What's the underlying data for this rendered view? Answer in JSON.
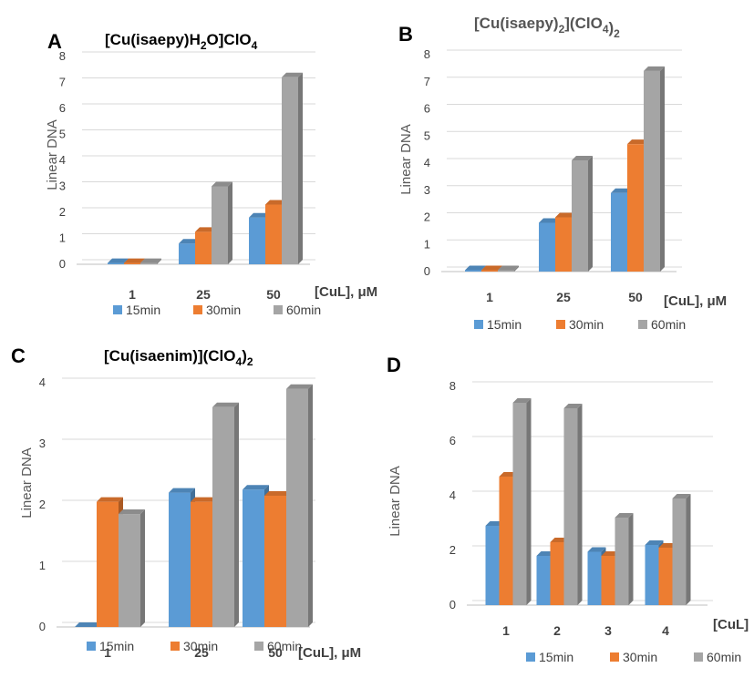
{
  "colors": {
    "s15": "#5B9BD5",
    "s30": "#ED7D31",
    "s60": "#A5A5A5",
    "grid": "#D9D9D9",
    "axis": "#BFBFBF"
  },
  "chart_data": [
    {
      "letter": "A",
      "title": {
        "main": "[Cu(isaepy)H",
        "sub1": "2",
        "mid": "O]ClO",
        "sub2": "4",
        "tail": ""
      },
      "type": "bar",
      "ylabel": "Linear DNA",
      "xunit": "[CuL], μM",
      "categories": [
        "1",
        "25",
        "50"
      ],
      "yticks": [
        "0",
        "1",
        "2",
        "3",
        "4",
        "5",
        "6",
        "7",
        "8"
      ],
      "ylim": [
        0,
        8
      ],
      "series": [
        {
          "name": "15min",
          "values": [
            0.05,
            0.8,
            1.8
          ]
        },
        {
          "name": "30min",
          "values": [
            0.05,
            1.25,
            2.3
          ]
        },
        {
          "name": "60min",
          "values": [
            0.05,
            3.0,
            7.2
          ]
        }
      ]
    },
    {
      "letter": "B",
      "title": {
        "main": "[Cu(isaepy)",
        "sub1": "2",
        "mid": "](ClO",
        "sub2": "4",
        "tail": ")2"
      },
      "type": "bar",
      "ylabel": "Linear DNA",
      "xunit": "[CuL], μM",
      "categories": [
        "1",
        "25",
        "50"
      ],
      "yticks": [
        "0",
        "1",
        "2",
        "3",
        "4",
        "5",
        "6",
        "7",
        "8"
      ],
      "ylim": [
        0,
        8
      ],
      "series": [
        {
          "name": "15min",
          "values": [
            0.05,
            1.8,
            2.9
          ]
        },
        {
          "name": "30min",
          "values": [
            0.05,
            2.0,
            4.7
          ]
        },
        {
          "name": "60min",
          "values": [
            0.05,
            4.1,
            7.4
          ]
        }
      ]
    },
    {
      "letter": "C",
      "title": {
        "main": "[Cu(isaenim)](ClO",
        "sub1": "4",
        "mid": ")",
        "sub2": "2",
        "tail": ""
      },
      "type": "bar",
      "ylabel": "Linear DNA",
      "xunit": "[CuL], μM",
      "categories": [
        "1",
        "25",
        "50"
      ],
      "yticks": [
        "0",
        "1",
        "2",
        "3",
        "4"
      ],
      "ylim": [
        0,
        4
      ],
      "series": [
        {
          "name": "15min",
          "values": [
            0.0,
            2.2,
            2.25
          ]
        },
        {
          "name": "30min",
          "values": [
            2.05,
            2.05,
            2.15
          ]
        },
        {
          "name": "60min",
          "values": [
            1.85,
            3.6,
            3.9
          ]
        }
      ]
    },
    {
      "letter": "D",
      "title": {
        "main": "",
        "sub1": "",
        "mid": "",
        "sub2": "",
        "tail": ""
      },
      "type": "bar",
      "ylabel": "Linear DNA",
      "xunit": "[CuL]",
      "categories": [
        "1",
        "2",
        "3",
        "4"
      ],
      "yticks": [
        "0",
        "2",
        "4",
        "6",
        "8"
      ],
      "ylim": [
        0,
        8
      ],
      "series": [
        {
          "name": "15min",
          "values": [
            2.9,
            1.8,
            1.95,
            2.2
          ]
        },
        {
          "name": "30min",
          "values": [
            4.7,
            2.3,
            1.8,
            2.1
          ]
        },
        {
          "name": "60min",
          "values": [
            7.4,
            7.2,
            3.2,
            3.9
          ]
        }
      ]
    }
  ]
}
